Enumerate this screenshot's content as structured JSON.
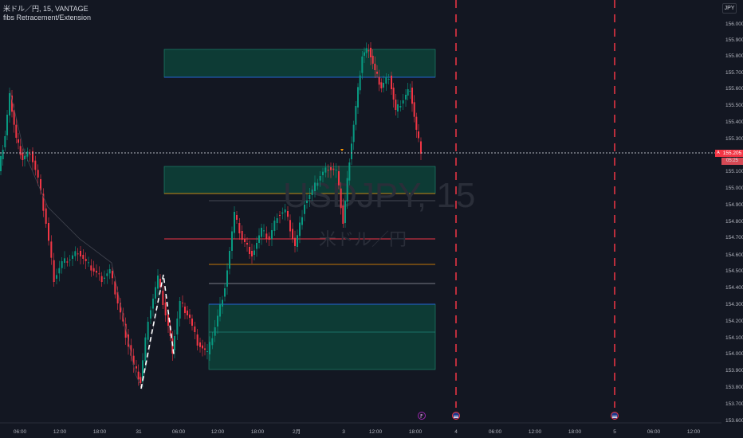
{
  "legend": {
    "symbol_line": "米ドル／円, 15, VANTAGE",
    "indicator": "fibs Retracement/Extension"
  },
  "currency_button": "JPY",
  "watermark": {
    "ticker": "USDJPY, 15",
    "name": "米ドル／円"
  },
  "price_axis": {
    "labels": [
      "156.000",
      "155.900",
      "155.800",
      "155.700",
      "155.600",
      "155.500",
      "155.400",
      "155.300",
      "155.100",
      "155.000",
      "154.900",
      "154.800",
      "154.700",
      "154.600",
      "154.500",
      "154.400",
      "154.300",
      "154.200",
      "154.100",
      "154.000",
      "153.900",
      "153.800",
      "153.700",
      "153.600"
    ]
  },
  "current_price": {
    "value": "155.205",
    "countdown": "05:25",
    "ask_label": "A"
  },
  "time_axis": {
    "labels": [
      "06:00",
      "12:00",
      "18:00",
      "31",
      "06:00",
      "12:00",
      "18:00",
      "2月",
      "3",
      "12:00",
      "18:00",
      "4",
      "06:00",
      "12:00",
      "18:00",
      "5",
      "06:00",
      "12:00"
    ]
  },
  "colors": {
    "background": "#131722",
    "up_candle": "#089981",
    "down_candle": "#f23645",
    "zone_fill": "#0d3b35",
    "zone_border": "#2962ff",
    "fib_orange": "#ff9800",
    "fib_red": "#f23645",
    "fib_gray": "#787b86",
    "session_line": "#f23645"
  },
  "icons": {
    "event_flag_1": "flag-icon",
    "event_us_1": "us-flag-icon",
    "event_us_2": "us-flag-icon"
  }
}
